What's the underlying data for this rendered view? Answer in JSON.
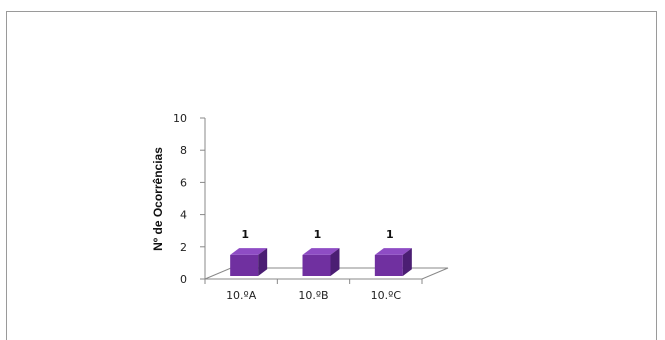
{
  "chart_data": {
    "type": "bar",
    "categories": [
      "10.ºA",
      "10.ºB",
      "10.ºC"
    ],
    "values": [
      1,
      1,
      1
    ],
    "data_labels": [
      "1",
      "1",
      "1"
    ],
    "title": "",
    "xlabel": "",
    "ylabel": "Nº de Ocorrências",
    "ylim": [
      0,
      10
    ],
    "yticks": [
      "0",
      "2",
      "4",
      "6",
      "8",
      "10"
    ],
    "grid": false,
    "legend": "none",
    "bar_color": "#7030A0"
  }
}
